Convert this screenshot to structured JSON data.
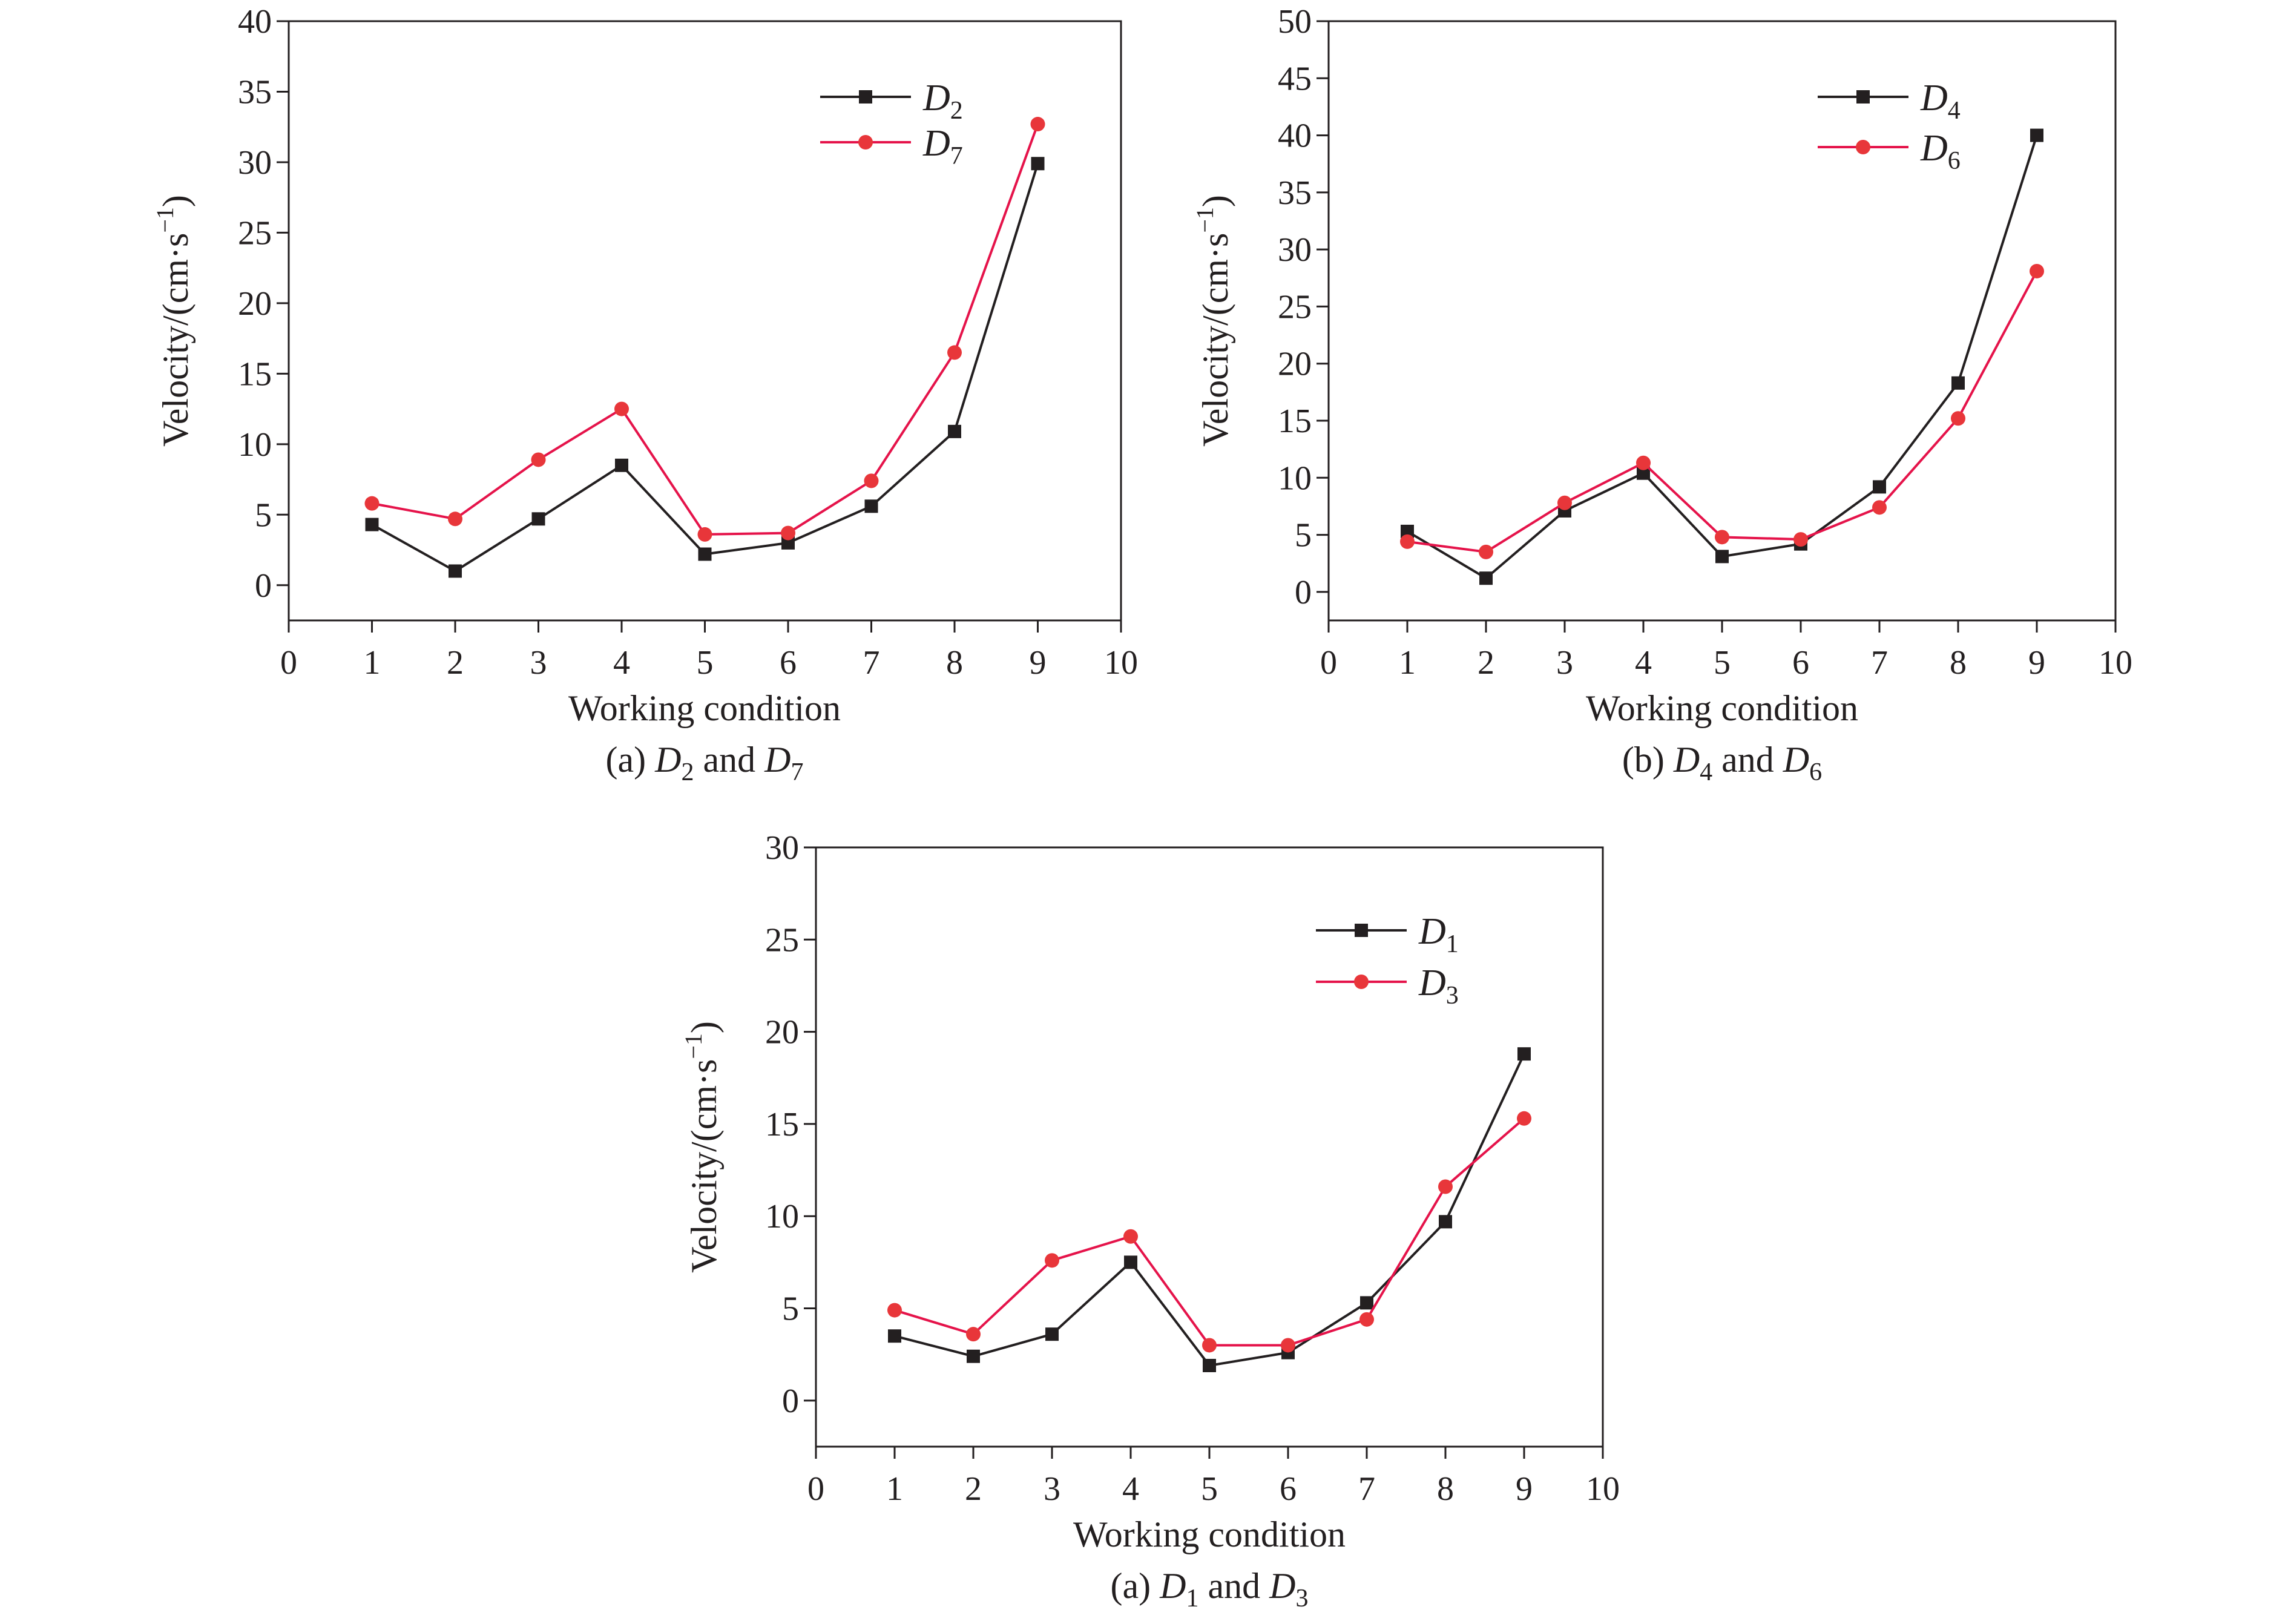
{
  "figure": {
    "colors": {
      "series_1": "#231f20",
      "series_2": "#e5134a",
      "marker_2": "#e8363a",
      "axis": "#231f20"
    }
  },
  "chart_data": [
    {
      "type": "line",
      "panel": "a",
      "caption": {
        "prefix": "(a) ",
        "s1_letter": "D",
        "s1_sub": "2",
        "joiner": " and ",
        "s2_letter": "D",
        "s2_sub": "7"
      },
      "xlabel": "Working condition",
      "ylabel": "Velocity/(cm·s",
      "ylabel_sup": "−1",
      "ylabel_end": ")",
      "xlim": [
        0,
        10
      ],
      "ylim": [
        -2.5,
        40
      ],
      "xticks": [
        "0",
        "1",
        "2",
        "3",
        "4",
        "5",
        "6",
        "7",
        "8",
        "9",
        "10"
      ],
      "yticks": [
        "0",
        "5",
        "10",
        "15",
        "20",
        "25",
        "30",
        "35",
        "40"
      ],
      "x": [
        1,
        2,
        3,
        4,
        5,
        6,
        7,
        8,
        9
      ],
      "series": [
        {
          "letter": "D",
          "sub": "2",
          "marker": "square",
          "values": [
            4.3,
            1.0,
            4.7,
            8.5,
            2.2,
            3.0,
            5.6,
            10.9,
            29.9
          ]
        },
        {
          "letter": "D",
          "sub": "7",
          "marker": "circle",
          "values": [
            5.8,
            4.7,
            8.9,
            12.5,
            3.6,
            3.7,
            7.4,
            16.5,
            32.7
          ]
        }
      ],
      "legend": "top-right",
      "grid": false
    },
    {
      "type": "line",
      "panel": "b",
      "caption": {
        "prefix": "(b) ",
        "s1_letter": "D",
        "s1_sub": "4",
        "joiner": " and ",
        "s2_letter": "D",
        "s2_sub": "6"
      },
      "xlabel": "Working condition",
      "ylabel": "Velocity/(cm·s",
      "ylabel_sup": "−1",
      "ylabel_end": ")",
      "xlim": [
        0,
        10
      ],
      "ylim": [
        -2.5,
        50
      ],
      "xticks": [
        "0",
        "1",
        "2",
        "3",
        "4",
        "5",
        "6",
        "7",
        "8",
        "9",
        "10"
      ],
      "yticks": [
        "0",
        "5",
        "10",
        "15",
        "20",
        "25",
        "30",
        "35",
        "40",
        "45",
        "50"
      ],
      "x": [
        1,
        2,
        3,
        4,
        5,
        6,
        7,
        8,
        9
      ],
      "series": [
        {
          "letter": "D",
          "sub": "4",
          "marker": "square",
          "values": [
            5.3,
            1.2,
            7.1,
            10.4,
            3.1,
            4.2,
            9.2,
            18.3,
            40.0
          ]
        },
        {
          "letter": "D",
          "sub": "6",
          "marker": "circle",
          "values": [
            4.4,
            3.5,
            7.8,
            11.3,
            4.8,
            4.6,
            7.4,
            15.2,
            28.1
          ]
        }
      ],
      "legend": "top-right",
      "grid": false
    },
    {
      "type": "line",
      "panel": "c",
      "caption": {
        "prefix": "(a) ",
        "s1_letter": "D",
        "s1_sub": "1",
        "joiner": " and ",
        "s2_letter": "D",
        "s2_sub": "3"
      },
      "xlabel": "Working condition",
      "ylabel": "Velocity/(cm·s",
      "ylabel_sup": "−1",
      "ylabel_end": ")",
      "xlim": [
        0,
        10
      ],
      "ylim": [
        -2.5,
        30
      ],
      "xticks": [
        "0",
        "1",
        "2",
        "3",
        "4",
        "5",
        "6",
        "7",
        "8",
        "9",
        "10"
      ],
      "yticks": [
        "0",
        "5",
        "10",
        "15",
        "20",
        "25",
        "30"
      ],
      "x": [
        1,
        2,
        3,
        4,
        5,
        6,
        7,
        8,
        9
      ],
      "series": [
        {
          "letter": "D",
          "sub": "1",
          "marker": "square",
          "values": [
            3.5,
            2.4,
            3.6,
            7.5,
            1.9,
            2.6,
            5.3,
            9.7,
            18.8
          ]
        },
        {
          "letter": "D",
          "sub": "3",
          "marker": "circle",
          "values": [
            4.9,
            3.6,
            7.6,
            8.9,
            3.0,
            3.0,
            4.4,
            11.6,
            15.3
          ]
        }
      ],
      "legend": "top-right",
      "grid": false
    }
  ]
}
